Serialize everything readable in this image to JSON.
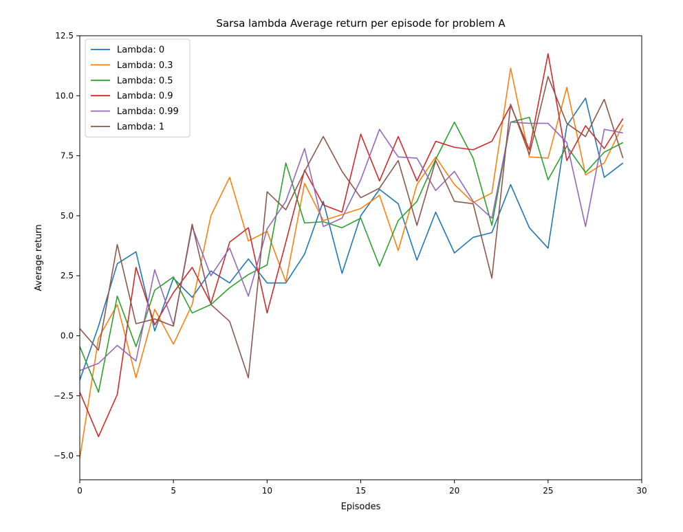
{
  "chart_data": {
    "type": "line",
    "title": "Sarsa lambda Average return per episode for problem A",
    "xlabel": "Episodes",
    "ylabel": "Average return",
    "xlim": [
      0,
      30
    ],
    "ylim": [
      -6.0,
      12.5
    ],
    "xticks": [
      0,
      5,
      10,
      15,
      20,
      25,
      30
    ],
    "yticks": [
      -5.0,
      -2.5,
      0.0,
      2.5,
      5.0,
      7.5,
      10.0,
      12.5
    ],
    "xtick_labels": [
      "0",
      "5",
      "10",
      "15",
      "20",
      "25",
      "30"
    ],
    "ytick_labels": [
      "−5.0",
      "−2.5",
      "0.0",
      "2.5",
      "5.0",
      "7.5",
      "10.0",
      "12.5"
    ],
    "grid": false,
    "legend_position": "top-left",
    "x": [
      0,
      1,
      2,
      3,
      4,
      5,
      6,
      7,
      8,
      9,
      10,
      11,
      12,
      13,
      14,
      15,
      16,
      17,
      18,
      19,
      20,
      21,
      22,
      23,
      24,
      25,
      26,
      27,
      28,
      29
    ],
    "series": [
      {
        "name": "Lambda: 0",
        "color": "#1f77b4",
        "values": [
          -1.85,
          0.4,
          3.0,
          3.5,
          0.2,
          2.4,
          1.6,
          2.7,
          2.2,
          3.2,
          2.2,
          2.2,
          3.4,
          5.6,
          2.6,
          5.0,
          6.1,
          5.5,
          3.15,
          5.15,
          3.45,
          4.1,
          4.3,
          6.3,
          4.5,
          3.65,
          8.75,
          9.9,
          6.6,
          7.2
        ]
      },
      {
        "name": "Lambda: 0.3",
        "color": "#ff7f0e",
        "values": [
          -5.1,
          -0.1,
          1.3,
          -1.75,
          1.1,
          -0.35,
          1.3,
          5.0,
          6.6,
          3.95,
          4.35,
          2.25,
          6.35,
          4.8,
          5.05,
          5.3,
          5.85,
          3.55,
          6.3,
          7.45,
          6.3,
          5.55,
          5.95,
          11.15,
          7.45,
          7.4,
          10.35,
          6.7,
          7.2,
          8.8
        ]
      },
      {
        "name": "Lambda: 0.5",
        "color": "#2ca02c",
        "values": [
          -0.45,
          -2.35,
          1.65,
          -0.45,
          1.9,
          2.45,
          0.95,
          1.3,
          2.0,
          2.55,
          2.95,
          7.2,
          4.7,
          4.75,
          4.5,
          4.9,
          2.9,
          4.8,
          5.6,
          7.35,
          8.9,
          7.4,
          4.6,
          8.9,
          9.1,
          6.5,
          7.9,
          6.8,
          7.65,
          8.05
        ]
      },
      {
        "name": "Lambda: 0.9",
        "color": "#d62728",
        "values": [
          -2.35,
          -4.2,
          -2.45,
          2.85,
          0.45,
          1.8,
          2.85,
          1.35,
          3.9,
          4.5,
          0.95,
          3.9,
          6.9,
          5.45,
          5.15,
          8.4,
          6.45,
          8.3,
          6.45,
          8.1,
          7.85,
          7.75,
          8.1,
          9.6,
          7.75,
          11.75,
          7.3,
          8.75,
          7.8,
          9.05
        ]
      },
      {
        "name": "Lambda: 0.99",
        "color": "#9467bd",
        "values": [
          -1.45,
          -1.15,
          -0.4,
          -1.05,
          2.75,
          0.45,
          4.55,
          2.5,
          3.65,
          1.65,
          4.45,
          5.6,
          7.8,
          4.55,
          4.9,
          6.5,
          8.6,
          7.45,
          7.4,
          6.05,
          6.85,
          5.6,
          4.9,
          8.9,
          8.85,
          8.85,
          8.05,
          4.55,
          8.6,
          8.45
        ]
      },
      {
        "name": "Lambda: 1",
        "color": "#8c564b",
        "values": [
          0.3,
          -0.6,
          3.8,
          0.5,
          0.7,
          0.4,
          4.65,
          1.3,
          0.6,
          -1.75,
          6.0,
          5.25,
          6.85,
          8.3,
          6.85,
          5.75,
          6.15,
          7.3,
          4.6,
          7.3,
          5.6,
          5.5,
          2.4,
          9.65,
          7.55,
          10.8,
          8.85,
          8.3,
          9.85,
          7.4
        ]
      }
    ]
  }
}
